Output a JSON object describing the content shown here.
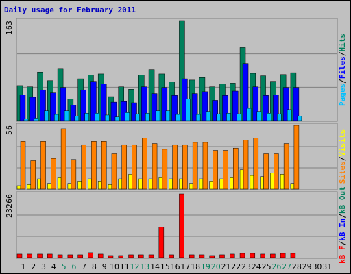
{
  "chart_data": [
    {
      "type": "bar",
      "title": "Daily usage for February 2011",
      "ylim": [
        0,
        163
      ],
      "yticks": [
        163
      ],
      "grid_divisions": 3,
      "legend_separator": "/",
      "series": [
        {
          "name": "Pages",
          "color": "#00c0ff",
          "values": [
            3,
            4,
            16,
            10,
            16,
            7,
            12,
            12,
            9,
            6,
            13,
            11,
            12,
            16,
            16,
            10,
            35,
            10,
            15,
            11,
            12,
            11,
            20,
            15,
            12,
            11,
            18,
            7,
            null,
            null,
            null
          ]
        },
        {
          "name": "Files",
          "color": "#0000ff",
          "values": [
            42,
            38,
            50,
            45,
            54,
            25,
            50,
            64,
            60,
            30,
            31,
            29,
            55,
            44,
            54,
            41,
            68,
            44,
            47,
            33,
            41,
            48,
            93,
            55,
            41,
            42,
            54,
            54,
            null,
            null,
            null
          ]
        },
        {
          "name": "Hits",
          "color": "#00805c",
          "values": [
            57,
            55,
            79,
            65,
            85,
            35,
            68,
            74,
            76,
            39,
            55,
            51,
            74,
            83,
            76,
            63,
            163,
            66,
            70,
            55,
            60,
            61,
            119,
            77,
            73,
            64,
            75,
            78,
            null,
            null,
            null
          ]
        }
      ]
    },
    {
      "type": "bar",
      "ylim": [
        0,
        56
      ],
      "yticks": [
        56
      ],
      "grid_divisions": 3,
      "legend_separator": "/",
      "series": [
        {
          "name": "Sites",
          "color": "#ff8000",
          "values": [
            42,
            25,
            42,
            27,
            53,
            26,
            39,
            42,
            42,
            31,
            39,
            39,
            45,
            40,
            35,
            39,
            39,
            41,
            41,
            34,
            34,
            36,
            43,
            45,
            31,
            31,
            40,
            56,
            null,
            null,
            null
          ]
        },
        {
          "name": "Visits",
          "color": "#ffff00",
          "values": [
            3,
            4,
            9,
            5,
            10,
            5,
            7,
            9,
            7,
            4,
            9,
            13,
            9,
            9,
            10,
            9,
            9,
            5,
            9,
            7,
            9,
            10,
            17,
            12,
            11,
            14,
            13,
            5,
            null,
            null,
            null
          ]
        }
      ]
    },
    {
      "type": "bar",
      "ylim": [
        0,
        23266
      ],
      "yticks": [
        23266
      ],
      "grid_divisions": 3,
      "legend_separator": "/",
      "categories": [
        "1",
        "2",
        "3",
        "4",
        "5",
        "6",
        "7",
        "8",
        "9",
        "10",
        "11",
        "12",
        "13",
        "14",
        "15",
        "16",
        "17",
        "18",
        "19",
        "20",
        "21",
        "22",
        "23",
        "24",
        "25",
        "26",
        "27",
        "28",
        "29",
        "30",
        "31"
      ],
      "category_colors": [
        "#000000",
        "#000000",
        "#000000",
        "#000000",
        "#00805c",
        "#00805c",
        "#000000",
        "#000000",
        "#000000",
        "#000000",
        "#000000",
        "#00805c",
        "#00805c",
        "#000000",
        "#000000",
        "#000000",
        "#000000",
        "#000000",
        "#00805c",
        "#00805c",
        "#000000",
        "#000000",
        "#000000",
        "#000000",
        "#000000",
        "#00805c",
        "#00805c",
        "#000000",
        "#000000",
        "#000000",
        "#000000"
      ],
      "series": [
        {
          "name": "kB F",
          "color": "#ff0000",
          "values": [
            1264,
            1264,
            1264,
            1264,
            1012,
            1012,
            1012,
            1770,
            1264,
            759,
            759,
            1012,
            1012,
            1012,
            11127,
            1012,
            23266,
            1012,
            1012,
            759,
            1012,
            1264,
            1517,
            1517,
            1264,
            1264,
            1517,
            1517,
            null,
            null,
            null
          ]
        },
        {
          "name": "kB In",
          "color": "#0000ff",
          "values": [
            0,
            0,
            0,
            0,
            0,
            0,
            0,
            0,
            0,
            0,
            0,
            0,
            0,
            0,
            0,
            0,
            0,
            0,
            0,
            0,
            0,
            0,
            0,
            0,
            0,
            0,
            0,
            0,
            null,
            null,
            null
          ]
        },
        {
          "name": "kB Out",
          "color": "#00805c",
          "values": [
            0,
            0,
            0,
            0,
            0,
            0,
            0,
            0,
            0,
            0,
            0,
            0,
            0,
            0,
            0,
            0,
            0,
            0,
            0,
            0,
            0,
            0,
            0,
            0,
            0,
            0,
            0,
            0,
            null,
            null,
            null
          ]
        }
      ]
    }
  ]
}
